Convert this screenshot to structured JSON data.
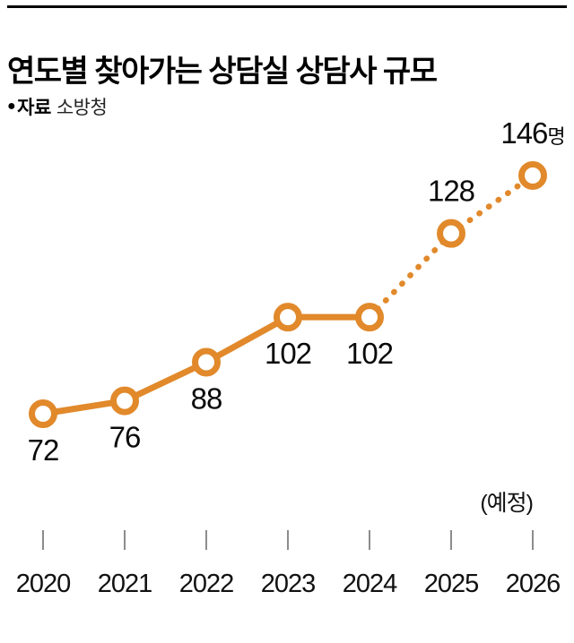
{
  "header": {
    "title": "연도별 찾아가는 상담실 상담사 규모",
    "source_bullet": "●",
    "source_label": "자료",
    "source_value": "소방청"
  },
  "chart_data": {
    "type": "line",
    "title": "연도별 찾아가는 상담실 상담사 규모",
    "xlabel": "",
    "ylabel": "",
    "categories": [
      "2020",
      "2021",
      "2022",
      "2023",
      "2024",
      "2025",
      "2026"
    ],
    "values": [
      72,
      76,
      88,
      102,
      102,
      128,
      146
    ],
    "last_value_unit": "명",
    "projected_from_index": 4,
    "projected_note": "(예정)",
    "label_positions": [
      "below",
      "below",
      "below",
      "below",
      "below",
      "above",
      "above"
    ],
    "line_color": "#E1892B",
    "marker_fill": "#ffffff",
    "tick_color": "#8C8C8C",
    "legend": "none",
    "grid": "off",
    "ylim": [
      60,
      160
    ]
  }
}
